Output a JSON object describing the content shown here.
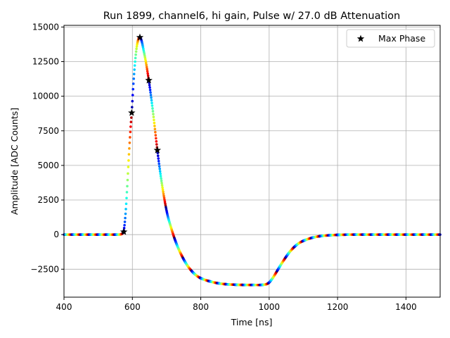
{
  "chart_data": {
    "type": "scatter",
    "title": "Run 1899, channel6, hi gain, Pulse w/ 27.0 dB Attenuation",
    "xlabel": "Time [ns]",
    "ylabel": "Amplitude [ADC Counts]",
    "xlim": [
      400,
      1500
    ],
    "ylim": [
      -4520,
      15120
    ],
    "grid": true,
    "x_ticks": [
      400,
      600,
      800,
      1000,
      1200,
      1400
    ],
    "x_tick_labels": [
      "400",
      "600",
      "800",
      "1000",
      "1200",
      "1400"
    ],
    "y_ticks": [
      -2500,
      0,
      2500,
      5000,
      7500,
      10000,
      12500,
      15000
    ],
    "y_tick_labels": [
      "−2500",
      "0",
      "2500",
      "5000",
      "7500",
      "10000",
      "12500",
      "15000"
    ],
    "legend": {
      "position": "top-right",
      "entries": [
        "Max Phase"
      ]
    },
    "waveform": {
      "description_colormap": "jet, cycling with phase",
      "phase_period_ns": 25,
      "points": [
        [
          400,
          0
        ],
        [
          560,
          0
        ],
        [
          566,
          20
        ],
        [
          571,
          90
        ],
        [
          575,
          300
        ],
        [
          580,
          1500
        ],
        [
          585,
          3500
        ],
        [
          590,
          5800
        ],
        [
          595,
          7800
        ],
        [
          598,
          8800
        ],
        [
          603,
          10900
        ],
        [
          608,
          12500
        ],
        [
          613,
          13600
        ],
        [
          618,
          14150
        ],
        [
          622,
          14250
        ],
        [
          627,
          14000
        ],
        [
          633,
          13300
        ],
        [
          640,
          12400
        ],
        [
          648,
          11150
        ],
        [
          655,
          9900
        ],
        [
          662,
          8500
        ],
        [
          673,
          6100
        ],
        [
          682,
          4400
        ],
        [
          692,
          2800
        ],
        [
          702,
          1500
        ],
        [
          712,
          600
        ],
        [
          725,
          -400
        ],
        [
          740,
          -1300
        ],
        [
          760,
          -2200
        ],
        [
          780,
          -2800
        ],
        [
          800,
          -3150
        ],
        [
          830,
          -3400
        ],
        [
          860,
          -3550
        ],
        [
          900,
          -3620
        ],
        [
          950,
          -3640
        ],
        [
          985,
          -3620
        ],
        [
          998,
          -3500
        ],
        [
          1010,
          -3150
        ],
        [
          1025,
          -2550
        ],
        [
          1040,
          -1950
        ],
        [
          1060,
          -1250
        ],
        [
          1080,
          -750
        ],
        [
          1100,
          -450
        ],
        [
          1130,
          -200
        ],
        [
          1160,
          -80
        ],
        [
          1200,
          -20
        ],
        [
          1250,
          0
        ],
        [
          1500,
          0
        ]
      ]
    },
    "max_phase": {
      "name": "Max Phase",
      "points": [
        [
          575,
          200
        ],
        [
          598,
          8800
        ],
        [
          622,
          14250
        ],
        [
          648,
          11150
        ],
        [
          673,
          6100
        ]
      ]
    }
  }
}
